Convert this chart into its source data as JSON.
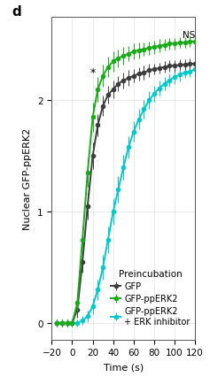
{
  "xlabel": "Time (s)",
  "ylabel": "Nuclear GFP-ppERK2",
  "xlim": [
    -20,
    120
  ],
  "ylim": [
    -0.15,
    2.75
  ],
  "xticks": [
    -20,
    0,
    20,
    40,
    60,
    80,
    100,
    120
  ],
  "yticks": [
    0,
    1,
    2
  ],
  "time_points": [
    -15,
    -10,
    -5,
    0,
    5,
    10,
    15,
    20,
    25,
    30,
    35,
    40,
    45,
    50,
    55,
    60,
    65,
    70,
    75,
    80,
    85,
    90,
    95,
    100,
    105,
    110,
    115,
    120
  ],
  "gfp_values": [
    0.0,
    0.0,
    0.0,
    0.0,
    0.12,
    0.55,
    1.05,
    1.5,
    1.78,
    1.95,
    2.05,
    2.1,
    2.15,
    2.18,
    2.2,
    2.22,
    2.24,
    2.25,
    2.27,
    2.28,
    2.29,
    2.3,
    2.31,
    2.31,
    2.32,
    2.32,
    2.33,
    2.33
  ],
  "gfp_err": [
    0.03,
    0.03,
    0.03,
    0.03,
    0.07,
    0.1,
    0.12,
    0.12,
    0.1,
    0.09,
    0.08,
    0.08,
    0.07,
    0.07,
    0.07,
    0.06,
    0.06,
    0.06,
    0.06,
    0.05,
    0.05,
    0.05,
    0.05,
    0.05,
    0.05,
    0.05,
    0.05,
    0.05
  ],
  "gfp_pperk2_values": [
    0.0,
    0.0,
    0.0,
    0.0,
    0.18,
    0.75,
    1.35,
    1.85,
    2.1,
    2.22,
    2.3,
    2.35,
    2.38,
    2.4,
    2.42,
    2.44,
    2.45,
    2.46,
    2.47,
    2.48,
    2.49,
    2.5,
    2.51,
    2.51,
    2.52,
    2.52,
    2.53,
    2.53
  ],
  "gfp_pperk2_err": [
    0.03,
    0.03,
    0.03,
    0.03,
    0.08,
    0.11,
    0.13,
    0.13,
    0.11,
    0.1,
    0.09,
    0.09,
    0.08,
    0.08,
    0.07,
    0.07,
    0.07,
    0.06,
    0.06,
    0.06,
    0.06,
    0.05,
    0.05,
    0.05,
    0.05,
    0.05,
    0.05,
    0.05
  ],
  "gfp_inh_values": [
    0.0,
    0.0,
    0.0,
    0.0,
    0.0,
    0.02,
    0.06,
    0.15,
    0.3,
    0.5,
    0.75,
    1.0,
    1.2,
    1.4,
    1.58,
    1.72,
    1.83,
    1.92,
    2.0,
    2.06,
    2.11,
    2.15,
    2.18,
    2.21,
    2.23,
    2.25,
    2.26,
    2.28
  ],
  "gfp_inh_err": [
    0.03,
    0.03,
    0.03,
    0.03,
    0.03,
    0.04,
    0.05,
    0.07,
    0.09,
    0.11,
    0.12,
    0.12,
    0.12,
    0.11,
    0.1,
    0.09,
    0.09,
    0.08,
    0.08,
    0.07,
    0.07,
    0.06,
    0.06,
    0.06,
    0.06,
    0.05,
    0.05,
    0.05
  ],
  "color_gfp": "#3d3d3d",
  "color_gfp_pperk2": "#1aaa1a",
  "color_gfp_inh": "#00c8c8",
  "ns_text": "NS",
  "star_text": "*",
  "star_x": 20,
  "star_y": 2.2,
  "ns_x": 120,
  "ns_y": 2.55,
  "legend_title": "Preincubation",
  "panel_label": "d",
  "figsize": [
    2.37,
    4.27
  ],
  "dpi": 100
}
